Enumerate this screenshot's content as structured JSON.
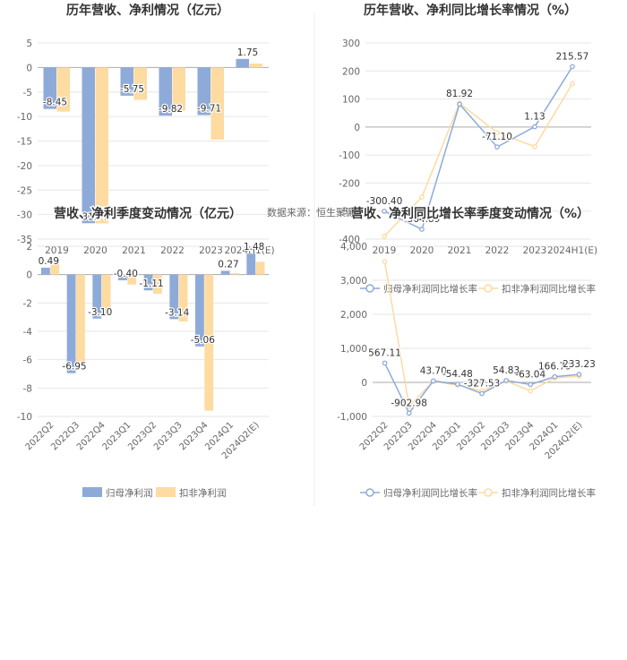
{
  "source_note": "数据来源：恒生聚源",
  "colors": {
    "blue": "#8eaad8",
    "orange": "#fddba1",
    "axis": "#cccccc",
    "grid": "#e6e6e6",
    "text": "#666666",
    "title": "#333333"
  },
  "chart_data": [
    {
      "id": "annual_bar",
      "type": "bar",
      "title": "历年营收、净利情况（亿元）",
      "categories": [
        "2019",
        "2020",
        "2021",
        "2022",
        "2023",
        "2024H1(E)"
      ],
      "ylim": [
        -35,
        5
      ],
      "yticks": [
        -35,
        -30,
        -25,
        -20,
        -15,
        -10,
        -5,
        0,
        5
      ],
      "series": [
        {
          "name": "归母净利润",
          "color": "#8eaad8",
          "values": [
            -8.45,
            -31.76,
            -5.75,
            -9.82,
            -9.71,
            1.75
          ]
        },
        {
          "name": "扣非净利润",
          "color": "#fddba1",
          "values": [
            -9.0,
            -31.8,
            -6.6,
            -8.8,
            -14.7,
            0.8
          ]
        }
      ],
      "labels": [
        "-8.45",
        "-31.76",
        "-5.75",
        "-9.82",
        "-9.71",
        "1.75"
      ],
      "legend": "bottom"
    },
    {
      "id": "annual_growth",
      "type": "line",
      "title": "历年营收、净利同比增长率情况（%）",
      "categories": [
        "2019",
        "2020",
        "2021",
        "2022",
        "2023",
        "2024H1(E)"
      ],
      "ylim": [
        -400,
        300
      ],
      "yticks": [
        -400,
        -300,
        -200,
        -100,
        0,
        100,
        200,
        300
      ],
      "series": [
        {
          "name": "归母净利润同比增长率",
          "color": "#8eaad8",
          "values": [
            -300.4,
            -364.89,
            81.92,
            -71.1,
            1.13,
            215.57
          ]
        },
        {
          "name": "扣非净利润同比增长率",
          "color": "#fddba1",
          "values": [
            -390,
            -250,
            85,
            -20,
            -70,
            155
          ]
        }
      ],
      "labels": [
        "-300.40",
        "-364.89",
        "81.92",
        "-71.10",
        "1.13",
        "215.57"
      ],
      "legend": "bottom"
    },
    {
      "id": "quarterly_bar",
      "type": "bar",
      "title": "营收、净利季度变动情况（亿元）",
      "categories": [
        "2022Q2",
        "2022Q3",
        "2022Q4",
        "2023Q1",
        "2023Q2",
        "2023Q3",
        "2023Q4",
        "2024Q1",
        "2024Q2(E)"
      ],
      "ylim": [
        -10,
        2
      ],
      "yticks": [
        -10,
        -8,
        -6,
        -4,
        -2,
        0,
        2
      ],
      "series": [
        {
          "name": "归母净利润",
          "color": "#8eaad8",
          "values": [
            0.49,
            -6.95,
            -3.1,
            -0.4,
            -1.11,
            -3.14,
            -5.06,
            0.27,
            1.48
          ]
        },
        {
          "name": "扣非净利润",
          "color": "#fddba1",
          "values": [
            0.85,
            -6.4,
            -2.75,
            -0.7,
            -1.35,
            -3.3,
            -9.6,
            0.1,
            0.9
          ]
        }
      ],
      "labels": [
        "0.49",
        "-6.95",
        "-3.10",
        "-0.40",
        "-1.11",
        "-3.14",
        "-5.06",
        "0.27",
        "1.48"
      ],
      "legend": "bottom",
      "legend_labels": [
        "归母净利润",
        "扣非净利润"
      ]
    },
    {
      "id": "quarterly_growth",
      "type": "line",
      "title": "营收、净利同比增长率季度变动情况（%）",
      "categories": [
        "2022Q2",
        "2022Q3",
        "2022Q4",
        "2023Q1",
        "2023Q2",
        "2023Q3",
        "2023Q4",
        "2024Q1",
        "2024Q2(E)"
      ],
      "ylim": [
        -1000,
        4000
      ],
      "yticks": [
        -1000,
        0,
        1000,
        2000,
        3000,
        4000
      ],
      "ytick_labels": [
        "-1,000",
        "0",
        "1,000",
        "2,000",
        "3,000",
        "4,000"
      ],
      "series": [
        {
          "name": "归母净利润同比增长率",
          "color": "#8eaad8",
          "values": [
            567.11,
            -902.98,
            43.7,
            -54.48,
            -327.53,
            54.83,
            -63.04,
            166.79,
            233.23
          ]
        },
        {
          "name": "扣非净利润同比增长率",
          "color": "#fddba1",
          "values": [
            3550,
            -700,
            30,
            -80,
            -250,
            40,
            -250,
            130,
            180
          ]
        }
      ],
      "labels": [
        "567.11",
        "-902.98",
        "43.70",
        "-54.48",
        "-327.53",
        "54.83",
        "-63.04",
        "166.79",
        "233.23"
      ],
      "legend": "bottom"
    }
  ]
}
